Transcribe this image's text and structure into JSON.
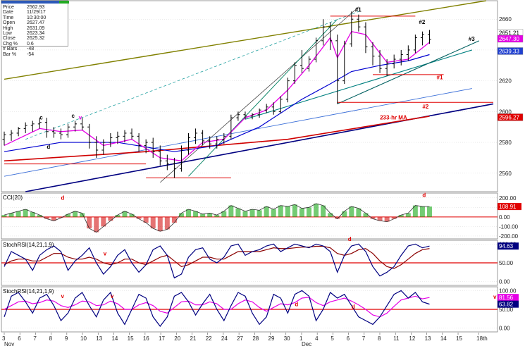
{
  "info_box": [
    {
      "k": "Price",
      "v": "2562.93"
    },
    {
      "k": "Date",
      "v": "11/29/17"
    },
    {
      "k": "Time",
      "v": "10:30:00"
    },
    {
      "k": "Open",
      "v": "2627.47"
    },
    {
      "k": "High",
      "v": "2631.09"
    },
    {
      "k": "Low",
      "v": "2623.34"
    },
    {
      "k": "Close",
      "v": "2625.32"
    },
    {
      "k": "Chg %",
      "v": "0.6"
    },
    {
      "k": "# Bars",
      "v": "-48"
    },
    {
      "k": "Bar %",
      "v": "-54"
    }
  ],
  "colors": {
    "price_bars": "#000000",
    "ma_fast": "#e600e6",
    "ma_mid": "#0000d0",
    "ma_233": "#d00000",
    "stoch": "#000080",
    "stoch_signal": "#8b0000",
    "cci_pos": "#00a000",
    "cci_neg": "#d00000",
    "trend_olive": "#808000",
    "trend_navy": "#000080",
    "trend_teal": "#008080",
    "hline_red": "#e00000"
  },
  "chart_data": [
    {
      "type": "line",
      "panel": "price",
      "y_ticks": [
        2560,
        2580,
        2600,
        2620,
        2640,
        2660
      ],
      "ylim": [
        2548,
        2672
      ],
      "x_range": [
        0,
        69
      ],
      "bars": [
        [
          0,
          2582,
          2587,
          2578,
          2585
        ],
        [
          1,
          2585,
          2588,
          2581,
          2586
        ],
        [
          2,
          2586,
          2590,
          2584,
          2589
        ],
        [
          3,
          2589,
          2593,
          2586,
          2591
        ],
        [
          4,
          2591,
          2594,
          2587,
          2592
        ],
        [
          5,
          2592,
          2596,
          2589,
          2593
        ],
        [
          6,
          2593,
          2596,
          2583,
          2587
        ],
        [
          7,
          2587,
          2590,
          2583,
          2586
        ],
        [
          8,
          2586,
          2589,
          2582,
          2585
        ],
        [
          9,
          2585,
          2592,
          2583,
          2590
        ],
        [
          10,
          2590,
          2594,
          2587,
          2592
        ],
        [
          11,
          2592,
          2596,
          2588,
          2590
        ],
        [
          12,
          2590,
          2592,
          2576,
          2580
        ],
        [
          13,
          2580,
          2584,
          2570,
          2575
        ],
        [
          14,
          2575,
          2582,
          2572,
          2580
        ],
        [
          15,
          2580,
          2586,
          2577,
          2583
        ],
        [
          16,
          2583,
          2587,
          2579,
          2584
        ],
        [
          17,
          2584,
          2588,
          2580,
          2586
        ],
        [
          18,
          2586,
          2589,
          2582,
          2584
        ],
        [
          19,
          2584,
          2586,
          2574,
          2578
        ],
        [
          20,
          2578,
          2582,
          2573,
          2580
        ],
        [
          21,
          2580,
          2583,
          2570,
          2574
        ],
        [
          22,
          2574,
          2578,
          2565,
          2568
        ],
        [
          23,
          2568,
          2572,
          2562,
          2566
        ],
        [
          24,
          2566,
          2570,
          2557,
          2563
        ],
        [
          25,
          2563,
          2578,
          2561,
          2575
        ],
        [
          26,
          2575,
          2586,
          2572,
          2583
        ],
        [
          27,
          2583,
          2589,
          2579,
          2586
        ],
        [
          28,
          2586,
          2588,
          2578,
          2581
        ],
        [
          29,
          2581,
          2584,
          2576,
          2579
        ],
        [
          30,
          2579,
          2584,
          2576,
          2582
        ],
        [
          31,
          2582,
          2586,
          2579,
          2584
        ],
        [
          32,
          2584,
          2598,
          2582,
          2596
        ],
        [
          33,
          2596,
          2600,
          2594,
          2598
        ],
        [
          34,
          2598,
          2600,
          2595,
          2597
        ],
        [
          35,
          2597,
          2599,
          2595,
          2598
        ],
        [
          36,
          2598,
          2602,
          2596,
          2601
        ],
        [
          37,
          2601,
          2605,
          2599,
          2603
        ],
        [
          38,
          2603,
          2606,
          2598,
          2600
        ],
        [
          39,
          2600,
          2610,
          2599,
          2608
        ],
        [
          40,
          2608,
          2622,
          2606,
          2620
        ],
        [
          41,
          2620,
          2632,
          2618,
          2630
        ],
        [
          42,
          2630,
          2640,
          2625,
          2628
        ],
        [
          43,
          2628,
          2636,
          2626,
          2634
        ],
        [
          44,
          2634,
          2648,
          2632,
          2646
        ],
        [
          45,
          2646,
          2660,
          2643,
          2655
        ],
        [
          46,
          2655,
          2658,
          2640,
          2646
        ],
        [
          47,
          2646,
          2650,
          2605,
          2620
        ],
        [
          48,
          2620,
          2646,
          2618,
          2644
        ],
        [
          49,
          2644,
          2665,
          2642,
          2660
        ],
        [
          50,
          2660,
          2663,
          2652,
          2655
        ],
        [
          51,
          2655,
          2658,
          2638,
          2642
        ],
        [
          52,
          2642,
          2645,
          2630,
          2636
        ],
        [
          53,
          2636,
          2640,
          2625,
          2628
        ],
        [
          54,
          2628,
          2634,
          2623,
          2631
        ],
        [
          55,
          2631,
          2637,
          2628,
          2634
        ],
        [
          56,
          2634,
          2640,
          2630,
          2637
        ],
        [
          57,
          2637,
          2643,
          2633,
          2640
        ],
        [
          58,
          2640,
          2650,
          2638,
          2648
        ],
        [
          59,
          2648,
          2652,
          2643,
          2650
        ],
        [
          60,
          2650,
          2653,
          2644,
          2647
        ]
      ],
      "ma_fast": [
        [
          0,
          2578
        ],
        [
          5,
          2589
        ],
        [
          8,
          2587
        ],
        [
          11,
          2588
        ],
        [
          14,
          2578
        ],
        [
          18,
          2582
        ],
        [
          22,
          2570
        ],
        [
          25,
          2568
        ],
        [
          28,
          2580
        ],
        [
          31,
          2582
        ],
        [
          34,
          2596
        ],
        [
          37,
          2601
        ],
        [
          40,
          2614
        ],
        [
          43,
          2630
        ],
        [
          46,
          2648
        ],
        [
          47,
          2635
        ],
        [
          49,
          2652
        ],
        [
          51,
          2650
        ],
        [
          54,
          2632
        ],
        [
          57,
          2634
        ],
        [
          60,
          2645
        ]
      ],
      "ma_mid": [
        [
          0,
          2574
        ],
        [
          8,
          2580
        ],
        [
          16,
          2580
        ],
        [
          24,
          2574
        ],
        [
          30,
          2578
        ],
        [
          36,
          2590
        ],
        [
          42,
          2608
        ],
        [
          46,
          2618
        ],
        [
          49,
          2626
        ],
        [
          53,
          2630
        ],
        [
          57,
          2633
        ],
        [
          60,
          2637
        ]
      ],
      "ma_233": [
        [
          0,
          2568
        ],
        [
          20,
          2574
        ],
        [
          40,
          2582
        ],
        [
          60,
          2597
        ]
      ],
      "annotations": [
        {
          "text": "#1",
          "x": 49.5,
          "y": 2665,
          "color": "#000000"
        },
        {
          "text": "#2",
          "x": 58.5,
          "y": 2657,
          "color": "#000000"
        },
        {
          "text": "#3",
          "x": 65.5,
          "y": 2646,
          "color": "#000000"
        },
        {
          "text": "#1",
          "x": 61,
          "y": 2621,
          "color": "#e00000"
        },
        {
          "text": "#2",
          "x": 59,
          "y": 2602,
          "color": "#e00000"
        },
        {
          "text": "233-hr MA",
          "x": 53,
          "y": 2595,
          "color": "#e00000"
        },
        {
          "text": "c",
          "x": 5,
          "y": 2595,
          "color": "#000000"
        },
        {
          "text": "c",
          "x": 9.5,
          "y": 2596,
          "color": "#000000"
        },
        {
          "text": "v",
          "x": 10.5,
          "y": 2595,
          "color": "#e600e6"
        },
        {
          "text": "d",
          "x": 6,
          "y": 2576,
          "color": "#000000"
        }
      ],
      "value_labels": [
        {
          "text": "2651.21",
          "y": 2651.2,
          "bg": "#ffffff",
          "fg": "#000000"
        },
        {
          "text": "2647.30",
          "y": 2647.3,
          "bg": "#e600e6",
          "fg": "#ffffff"
        },
        {
          "text": "2639.33",
          "y": 2639.3,
          "bg": "#2040d0",
          "fg": "#ffffff"
        },
        {
          "text": "2596.27",
          "y": 2596.3,
          "bg": "#e00000",
          "fg": "#ffffff"
        }
      ]
    },
    {
      "type": "bar",
      "panel": "cci",
      "title": "CCI(20)",
      "y_ticks": [
        200,
        100,
        0,
        -100,
        -200
      ],
      "ylim": [
        -230,
        250
      ],
      "values": [
        20,
        40,
        60,
        80,
        50,
        20,
        -20,
        -40,
        -10,
        30,
        60,
        40,
        -120,
        -160,
        -100,
        -40,
        20,
        60,
        30,
        -20,
        -60,
        -120,
        -150,
        -130,
        -60,
        40,
        80,
        60,
        30,
        40,
        20,
        60,
        120,
        90,
        60,
        80,
        70,
        110,
        80,
        120,
        110,
        130,
        90,
        100,
        140,
        120,
        40,
        -20,
        60,
        110,
        90,
        40,
        -20,
        -40,
        -50,
        -20,
        20,
        40,
        120,
        110,
        108.91
      ],
      "annotations": [
        {
          "text": "d",
          "x": 8,
          "y": 180,
          "color": "#e00000"
        },
        {
          "text": "d",
          "x": 59,
          "y": 210,
          "color": "#e00000"
        }
      ],
      "value_labels": [
        {
          "text": "108.91",
          "y": 108.91,
          "bg": "#e00000",
          "fg": "#ffffff"
        }
      ]
    },
    {
      "type": "line",
      "panel": "stoch_rsi_1",
      "title": "StochRSI(14,21,1,9)",
      "y_ticks": [
        100,
        50,
        0
      ],
      "ylim": [
        -10,
        110
      ],
      "k": [
        40,
        80,
        70,
        60,
        30,
        70,
        85,
        95,
        80,
        30,
        55,
        70,
        90,
        50,
        20,
        40,
        70,
        85,
        50,
        25,
        45,
        85,
        95,
        70,
        10,
        20,
        65,
        85,
        90,
        60,
        50,
        65,
        95,
        100,
        70,
        80,
        85,
        95,
        100,
        80,
        90,
        100,
        95,
        90,
        100,
        95,
        80,
        25,
        70,
        95,
        100,
        80,
        40,
        15,
        25,
        40,
        70,
        95,
        100,
        90,
        94.63
      ],
      "d": [
        45,
        55,
        60,
        60,
        55,
        55,
        65,
        75,
        75,
        65,
        60,
        60,
        65,
        60,
        50,
        45,
        50,
        60,
        60,
        50,
        45,
        55,
        65,
        70,
        55,
        40,
        45,
        55,
        65,
        65,
        60,
        60,
        70,
        80,
        80,
        80,
        80,
        85,
        90,
        88,
        88,
        90,
        92,
        92,
        94,
        94,
        90,
        75,
        70,
        75,
        85,
        88,
        75,
        55,
        40,
        35,
        45,
        60,
        75,
        85,
        88
      ],
      "annotations": [
        {
          "text": "v",
          "x": 14,
          "y": 70,
          "color": "#e00000"
        },
        {
          "text": "d",
          "x": 48.5,
          "y": 108,
          "color": "#e00000"
        }
      ],
      "value_labels": [
        {
          "text": "94.63",
          "y": 94.63,
          "bg": "#000080",
          "fg": "#ffffff"
        }
      ]
    },
    {
      "type": "line",
      "panel": "stoch_rsi_2",
      "title": "StochRSI(14,21,1,9)",
      "y_ticks": [
        100,
        50,
        0
      ],
      "ylim": [
        -10,
        110
      ],
      "k": [
        30,
        85,
        95,
        70,
        40,
        80,
        90,
        60,
        20,
        40,
        80,
        95,
        60,
        30,
        75,
        95,
        40,
        10,
        50,
        90,
        80,
        30,
        5,
        30,
        85,
        95,
        70,
        35,
        65,
        90,
        50,
        20,
        60,
        95,
        85,
        40,
        10,
        30,
        90,
        80,
        40,
        90,
        100,
        85,
        20,
        50,
        95,
        80,
        90,
        60,
        30,
        20,
        10,
        30,
        60,
        90,
        100,
        80,
        95,
        70,
        63.82
      ],
      "d": [
        50,
        60,
        70,
        72,
        65,
        68,
        75,
        72,
        60,
        55,
        62,
        72,
        70,
        60,
        62,
        72,
        65,
        50,
        50,
        62,
        68,
        60,
        45,
        40,
        55,
        70,
        72,
        62,
        62,
        70,
        65,
        50,
        50,
        65,
        75,
        70,
        55,
        45,
        55,
        65,
        62,
        68,
        80,
        82,
        68,
        60,
        70,
        75,
        80,
        72,
        62,
        50,
        35,
        30,
        40,
        58,
        75,
        80,
        85,
        78,
        81.56
      ],
      "annotations": [
        {
          "text": "v",
          "x": 8,
          "y": 80,
          "color": "#e00000"
        },
        {
          "text": "v",
          "x": 15,
          "y": 80,
          "color": "#e00000"
        },
        {
          "text": "d",
          "x": 41,
          "y": 58,
          "color": "#e00000"
        },
        {
          "text": "d",
          "x": 49,
          "y": 52,
          "color": "#e00000"
        },
        {
          "text": "v",
          "x": 69,
          "y": 78,
          "color": "#e00000"
        }
      ],
      "value_labels": [
        {
          "text": "81.56",
          "y": 81.56,
          "bg": "#e600e6",
          "fg": "#ffffff"
        },
        {
          "text": "63.82",
          "y": 63.82,
          "bg": "#000080",
          "fg": "#ffffff"
        }
      ]
    },
    {
      "type": "axis",
      "panel": "time_axis",
      "x_ticks": [
        {
          "x": 0,
          "label": "3"
        },
        {
          "x": 3.2,
          "label": "6"
        },
        {
          "x": 6.4,
          "label": "7"
        },
        {
          "x": 9.6,
          "label": "8"
        },
        {
          "x": 12.8,
          "label": "9"
        },
        {
          "x": 16,
          "label": "10"
        },
        {
          "x": 19.2,
          "label": "13"
        },
        {
          "x": 22.4,
          "label": "14"
        },
        {
          "x": 25.6,
          "label": "15"
        },
        {
          "x": 28.8,
          "label": "16"
        },
        {
          "x": 32,
          "label": "17"
        },
        {
          "x": 35.2,
          "label": "20"
        },
        {
          "x": 38.4,
          "label": "21"
        },
        {
          "x": 41.6,
          "label": "22"
        },
        {
          "x": 44.8,
          "label": "24"
        },
        {
          "x": 48,
          "label": "27"
        },
        {
          "x": 51.2,
          "label": "28"
        },
        {
          "x": 54.4,
          "label": "29"
        },
        {
          "x": 57.6,
          "label": "30"
        },
        {
          "x": 60.8,
          "label": "1"
        },
        {
          "x": 64,
          "label": "4"
        },
        {
          "x": 67.2,
          "label": "5"
        },
        {
          "x": 70.4,
          "label": "6"
        },
        {
          "x": 73.6,
          "label": "7"
        },
        {
          "x": 76.8,
          "label": "8"
        },
        {
          "x": 80,
          "label": "11"
        },
        {
          "x": 83.2,
          "label": "12"
        },
        {
          "x": 86.4,
          "label": "13"
        },
        {
          "x": 89.6,
          "label": "14"
        },
        {
          "x": 92.8,
          "label": "15"
        },
        {
          "x": 97,
          "label": "18th"
        }
      ],
      "month_labels": [
        {
          "x": 0,
          "label": "Nov"
        },
        {
          "x": 60.8,
          "label": "Dec"
        }
      ]
    }
  ]
}
